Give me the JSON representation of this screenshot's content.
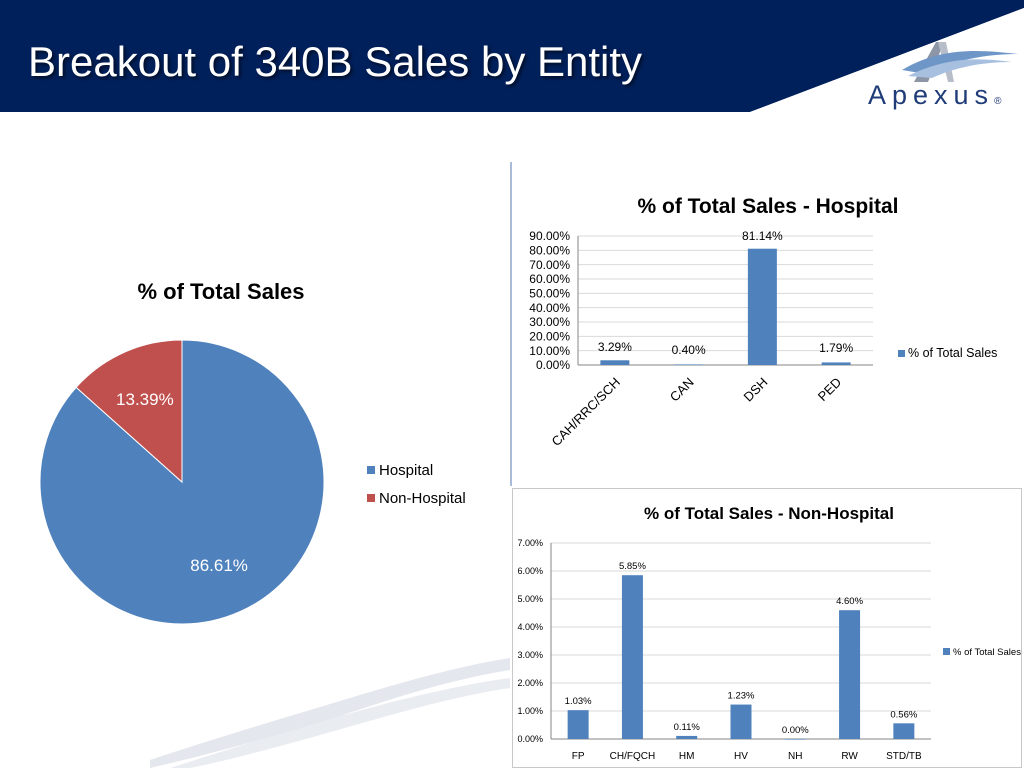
{
  "slide": {
    "title": "Breakout of 340B Sales by Entity",
    "logo_text": "Apexus",
    "logo_mark": "®",
    "colors": {
      "header": "#00205b",
      "accent": "#4f81bd",
      "secondary": "#c0504d"
    }
  },
  "chart_data": [
    {
      "type": "pie",
      "title": "% of Total Sales",
      "categories": [
        "Hospital",
        "Non-Hospital"
      ],
      "values": [
        86.61,
        13.39
      ],
      "data_labels": [
        "86.61%",
        "13.39%"
      ],
      "colors": [
        "#4f81bd",
        "#c0504d"
      ],
      "legend": {
        "position": "right",
        "entries": [
          "Hospital",
          "Non-Hospital"
        ]
      }
    },
    {
      "type": "bar",
      "title": "% of Total Sales - Hospital",
      "categories": [
        "CAH/RRC/SCH",
        "CAN",
        "DSH",
        "PED"
      ],
      "series": [
        {
          "name": "% of Total Sales",
          "values": [
            3.29,
            0.4,
            81.14,
            1.79
          ],
          "data_labels": [
            "3.29%",
            "0.40%",
            "81.14%",
            "1.79%"
          ],
          "color": "#4f81bd"
        }
      ],
      "yticks": [
        "0.00%",
        "10.00%",
        "20.00%",
        "30.00%",
        "40.00%",
        "50.00%",
        "60.00%",
        "70.00%",
        "80.00%",
        "90.00%"
      ],
      "ylim": [
        0,
        90
      ],
      "grid": true,
      "legend": {
        "position": "right"
      }
    },
    {
      "type": "bar",
      "title": "% of Total Sales - Non-Hospital",
      "categories": [
        "FP",
        "CH/FQCH",
        "HM",
        "HV",
        "NH",
        "RW",
        "STD/TB"
      ],
      "series": [
        {
          "name": "% of Total Sales",
          "values": [
            1.03,
            5.85,
            0.11,
            1.23,
            0.0,
            4.6,
            0.56
          ],
          "data_labels": [
            "1.03%",
            "5.85%",
            "0.11%",
            "1.23%",
            "0.00%",
            "4.60%",
            "0.56%"
          ],
          "color": "#4f81bd"
        }
      ],
      "yticks": [
        "0.00%",
        "1.00%",
        "2.00%",
        "3.00%",
        "4.00%",
        "5.00%",
        "6.00%",
        "7.00%"
      ],
      "ylim": [
        0,
        7
      ],
      "grid": true,
      "legend": {
        "position": "right"
      }
    }
  ]
}
